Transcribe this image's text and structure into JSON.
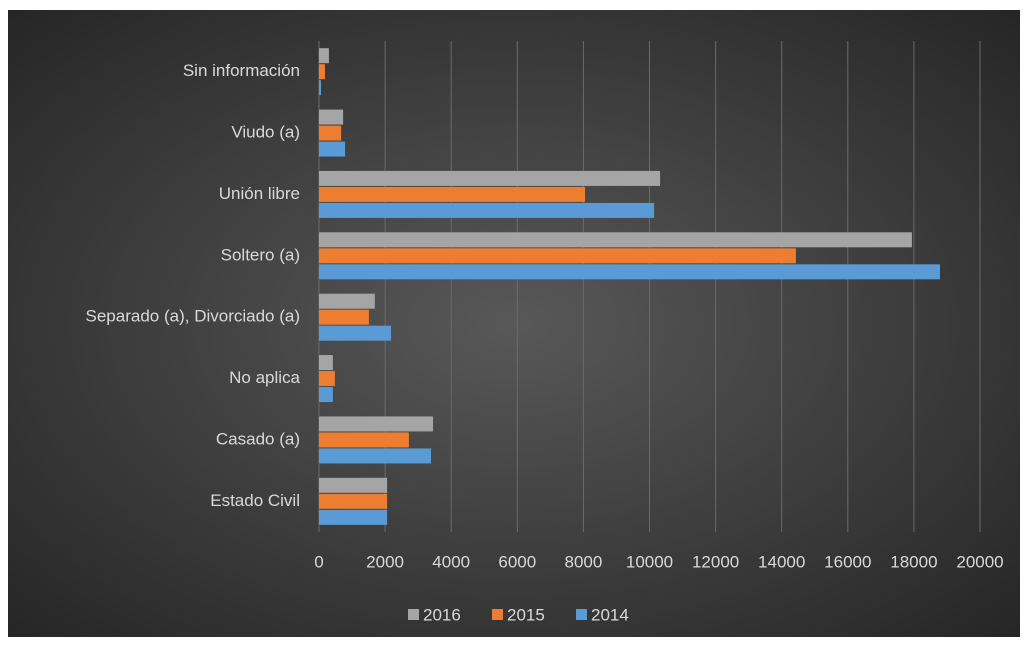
{
  "chart_data": {
    "type": "bar",
    "orientation": "horizontal",
    "categories": [
      "Sin información",
      "Viudo (a)",
      "Unión libre",
      "Soltero (a)",
      "Separado (a), Divorciado (a)",
      "No aplica",
      "Casado (a)",
      "Estado Civil"
    ],
    "series": [
      {
        "name": "2016",
        "color": "#a5a5a5",
        "values": [
          300,
          730,
          10320,
          17940,
          1690,
          420,
          3450,
          2060
        ]
      },
      {
        "name": "2015",
        "color": "#ed7d31",
        "values": [
          180,
          670,
          8050,
          14430,
          1510,
          480,
          2720,
          2060
        ]
      },
      {
        "name": "2014",
        "color": "#5b9bd5",
        "values": [
          60,
          790,
          10140,
          18790,
          2180,
          420,
          3390,
          2060
        ]
      }
    ],
    "xlim": [
      0,
      20000
    ],
    "xticks": [
      0,
      2000,
      4000,
      6000,
      8000,
      10000,
      12000,
      14000,
      16000,
      18000,
      20000
    ],
    "grid": true,
    "legend": "bottom"
  }
}
